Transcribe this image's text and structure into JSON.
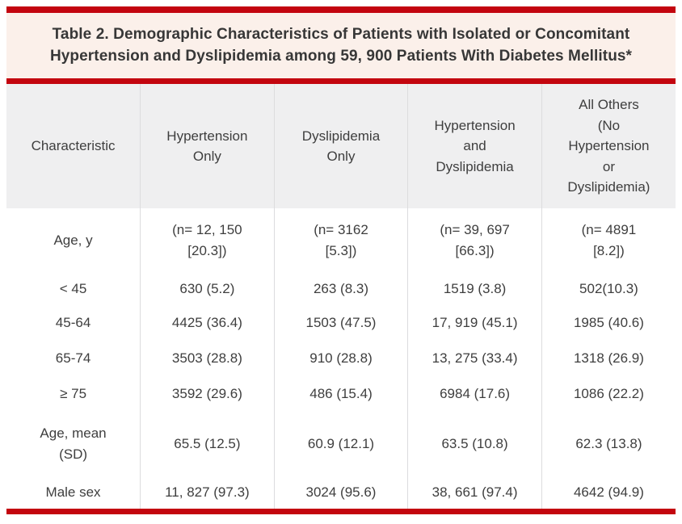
{
  "title": {
    "label": "Table 2.",
    "text": "Demographic Characteristics of Patients with Isolated or Concomitant\nHypertension and Dyslipidemia among 59, 900 Patients With Diabetes Mellitus*"
  },
  "table": {
    "columns": [
      "Characteristic",
      "Hypertension\nOnly",
      "Dyslipidemia\nOnly",
      "Hypertension\nand\nDyslipidemia",
      "All Others\n(No\nHypertension\nor\nDyslipidemia)"
    ],
    "rows": [
      {
        "label": "Age, y",
        "values": [
          "(n= 12, 150\n[20.3])",
          "(n= 3162\n[5.3])",
          "(n= 39, 697\n[66.3])",
          "(n= 4891\n[8.2])"
        ]
      },
      {
        "label": "< 45",
        "values": [
          "630 (5.2)",
          "263 (8.3)",
          "1519 (3.8)",
          "502(10.3)"
        ]
      },
      {
        "label": "45-64",
        "values": [
          "4425 (36.4)",
          "1503 (47.5)",
          "17, 919 (45.1)",
          "1985 (40.6)"
        ]
      },
      {
        "label": "65-74",
        "values": [
          "3503 (28.8)",
          "910 (28.8)",
          "13, 275 (33.4)",
          "1318 (26.9)"
        ]
      },
      {
        "label": "≥ 75",
        "values": [
          "3592 (29.6)",
          "486 (15.4)",
          "6984 (17.6)",
          "1086 (22.2)"
        ]
      },
      {
        "label": "Age, mean\n(SD)",
        "values": [
          "65.5 (12.5)",
          "60.9 (12.1)",
          "63.5 (10.8)",
          "62.3 (13.8)"
        ]
      },
      {
        "label": "Male sex",
        "values": [
          "11, 827 (97.3)",
          "3024 (95.6)",
          "38, 661 (97.4)",
          "4642 (94.9)"
        ]
      }
    ]
  },
  "colors": {
    "rule_red": "#c3050f",
    "title_band_pink": "#fbf0ea",
    "header_gray": "#efeff0",
    "divider_gray": "#dcdcde",
    "text": "#3e3e3e"
  }
}
